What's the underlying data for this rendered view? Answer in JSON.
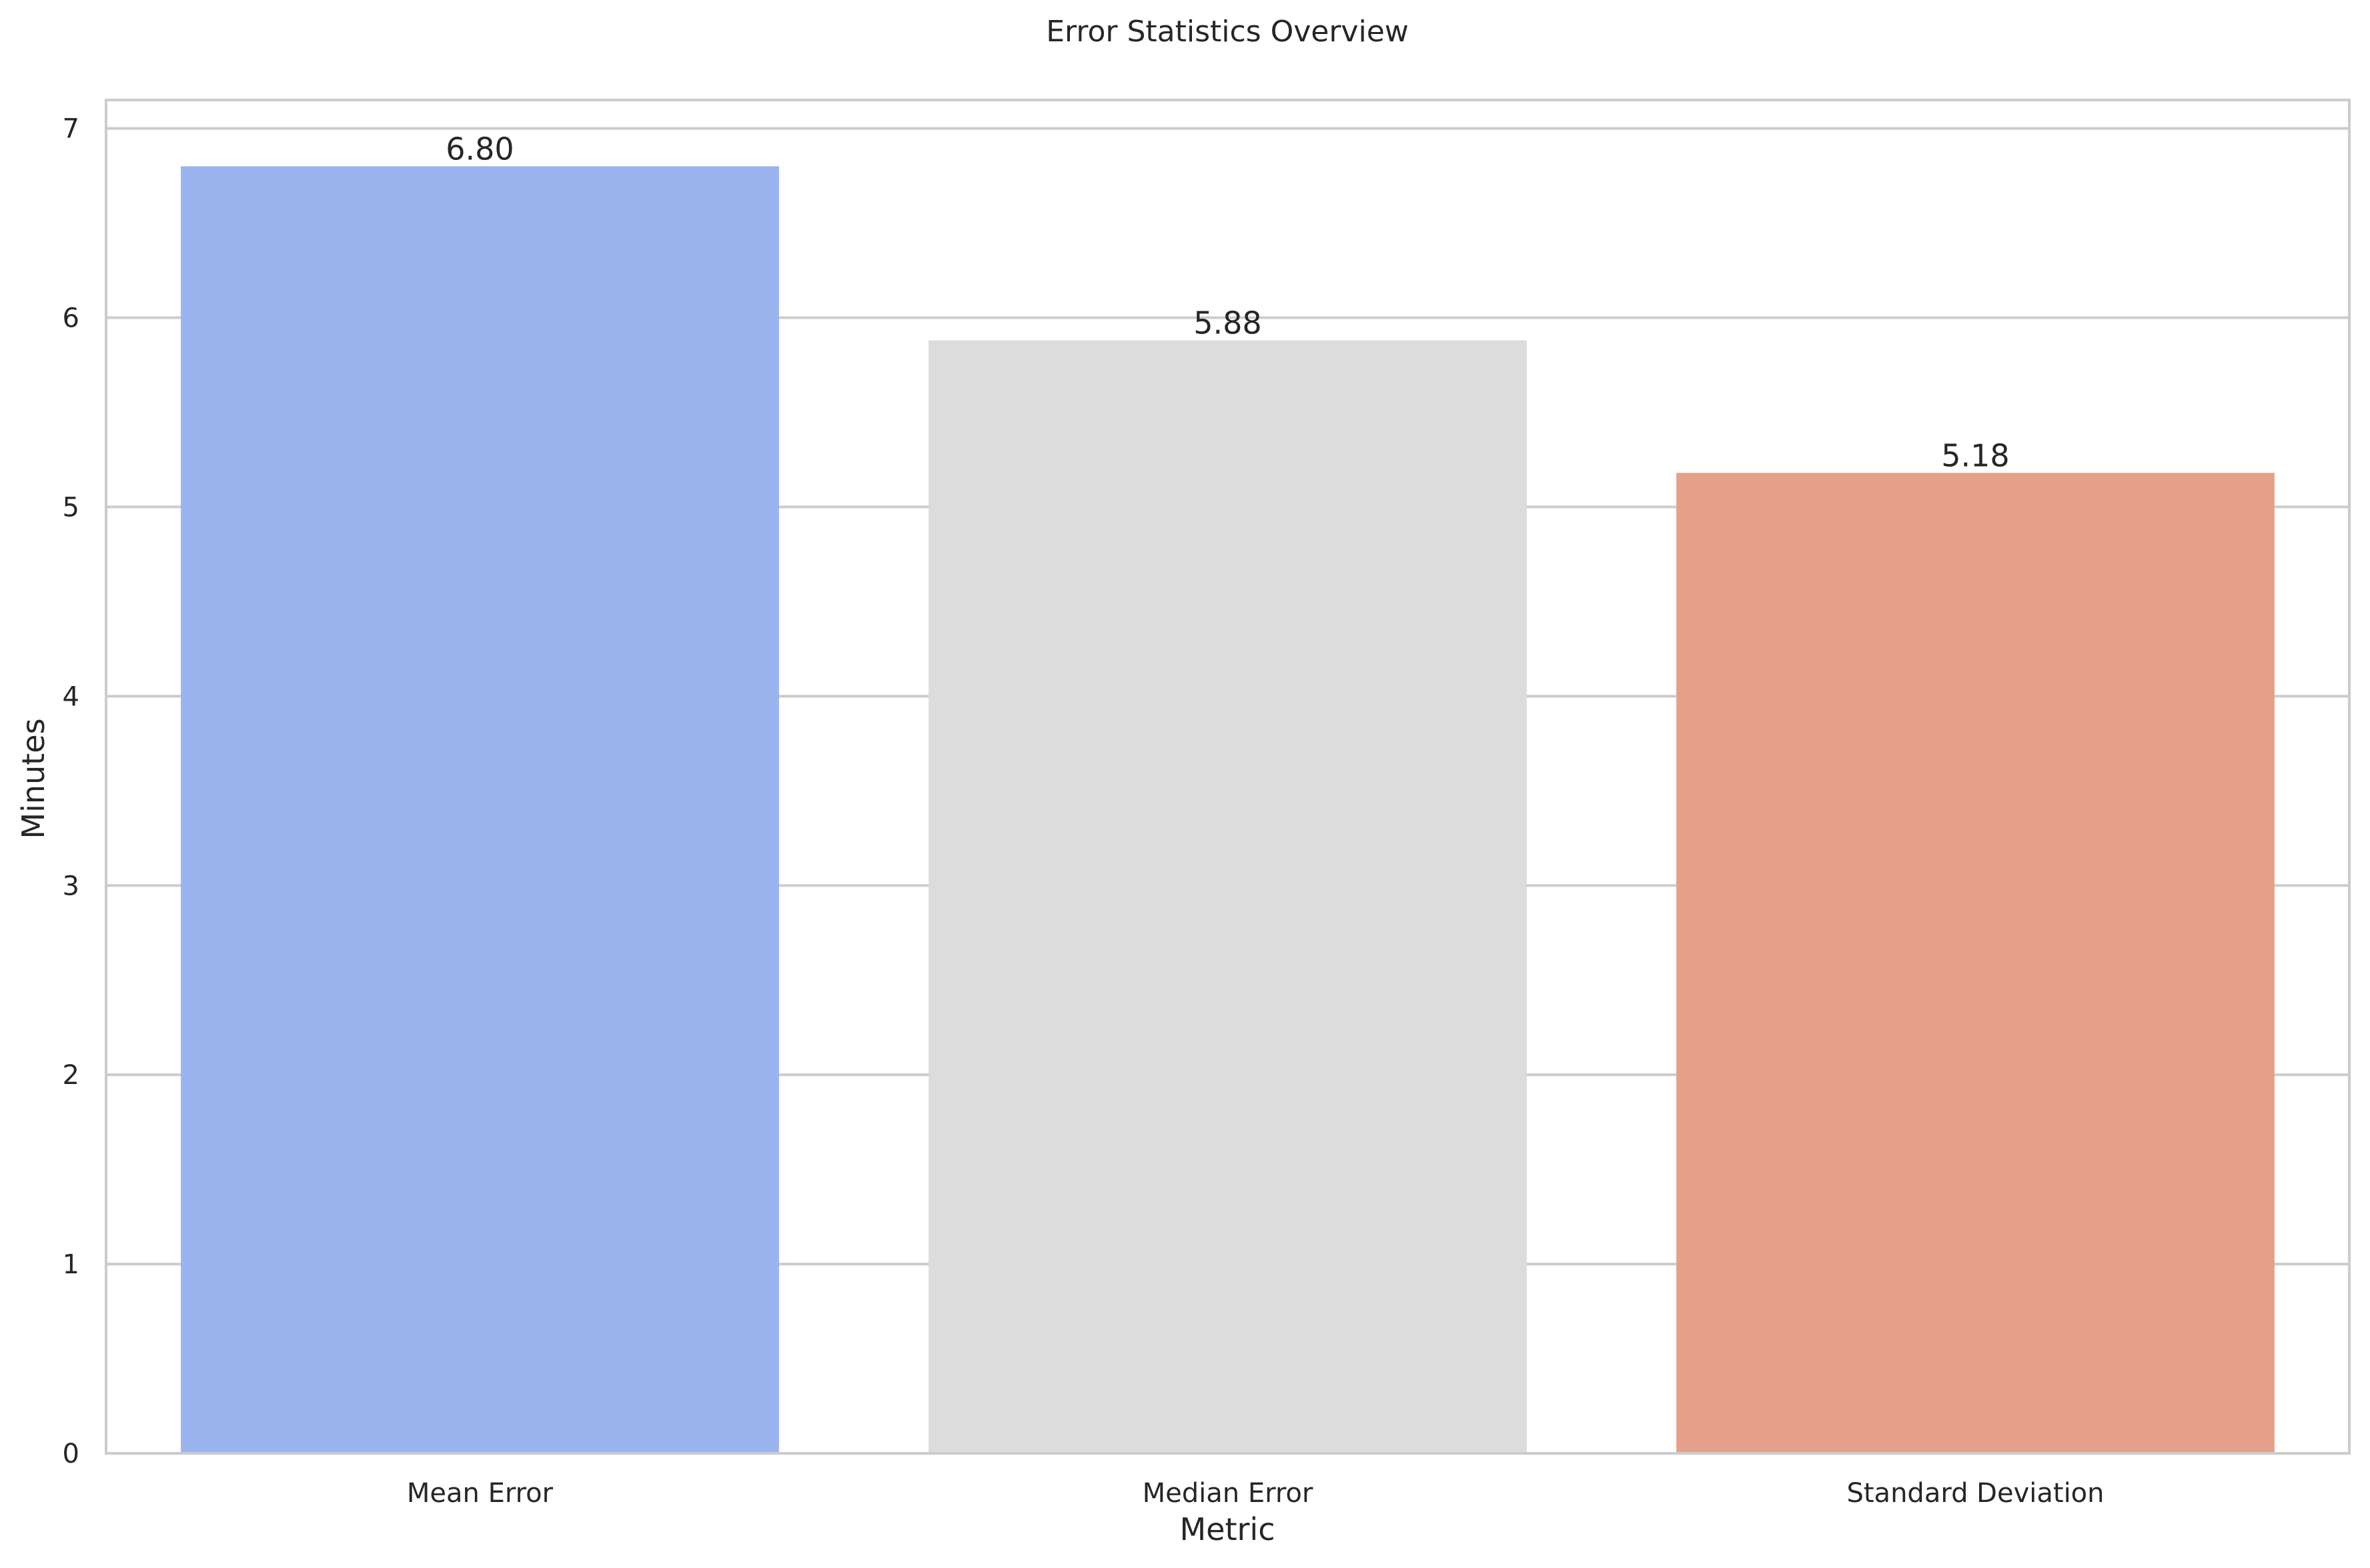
{
  "chart_data": {
    "type": "bar",
    "title": "Error Statistics Overview",
    "xlabel": "Metric",
    "ylabel": "Minutes",
    "categories": [
      "Mean Error",
      "Median Error",
      "Standard Deviation"
    ],
    "values": [
      6.8,
      5.88,
      5.18
    ],
    "data_labels": [
      "6.80",
      "5.88",
      "5.18"
    ],
    "colors": [
      "#9ab4f0",
      "#dcdcdc",
      "#e4a08a"
    ],
    "ylim": [
      0,
      7.15
    ],
    "yticks": [
      0,
      1,
      2,
      3,
      4,
      5,
      6,
      7
    ],
    "grid": true,
    "grid_color": "#cccccc"
  }
}
